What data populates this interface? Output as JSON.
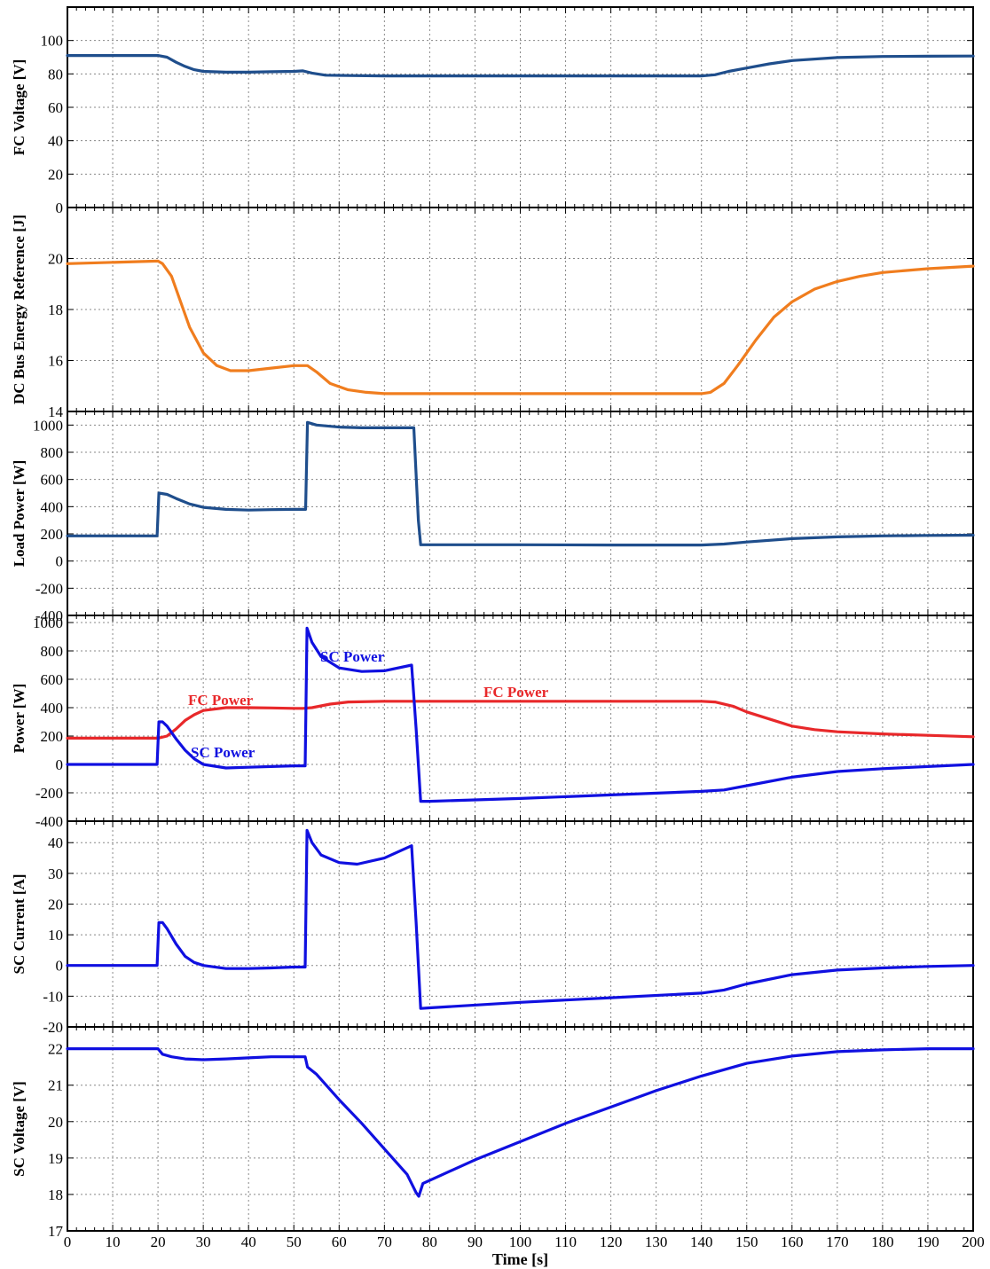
{
  "chart_data": [
    {
      "type": "line",
      "ylabel": "FC Voltage [V]",
      "xlim": [
        0,
        200
      ],
      "ylim": [
        0,
        120
      ],
      "yticks": [
        0,
        20,
        40,
        60,
        80,
        100
      ],
      "grid": true,
      "series": [
        {
          "color": "#1f4e8c",
          "x": [
            0,
            20,
            22,
            24,
            26,
            28,
            30,
            35,
            40,
            45,
            50,
            52,
            54,
            57,
            62,
            70,
            80,
            100,
            120,
            140,
            143,
            146,
            150,
            155,
            160,
            170,
            180,
            190,
            200
          ],
          "y": [
            91,
            91,
            90,
            87,
            84.5,
            82.5,
            81.5,
            81,
            81,
            81.3,
            81.5,
            81.8,
            80.5,
            79.2,
            79,
            78.8,
            78.8,
            78.8,
            78.8,
            78.8,
            79.5,
            81.5,
            83.5,
            86,
            88,
            89.8,
            90.4,
            90.6,
            90.7
          ]
        }
      ]
    },
    {
      "type": "line",
      "ylabel": "DC Bus Energy Reference [J]",
      "xlim": [
        0,
        200
      ],
      "ylim": [
        14,
        22
      ],
      "yticks": [
        14,
        16,
        18,
        20
      ],
      "grid": true,
      "series": [
        {
          "color": "#f07d1e",
          "x": [
            0,
            20,
            21,
            23,
            25,
            27,
            30,
            33,
            36,
            40,
            45,
            50,
            53,
            55,
            58,
            62,
            66,
            70,
            80,
            100,
            120,
            140,
            142,
            145,
            148,
            152,
            156,
            160,
            165,
            170,
            175,
            180,
            190,
            200
          ],
          "y": [
            19.8,
            19.9,
            19.8,
            19.3,
            18.3,
            17.3,
            16.3,
            15.8,
            15.6,
            15.6,
            15.7,
            15.8,
            15.8,
            15.55,
            15.1,
            14.85,
            14.75,
            14.7,
            14.7,
            14.7,
            14.7,
            14.7,
            14.75,
            15.1,
            15.8,
            16.8,
            17.7,
            18.3,
            18.8,
            19.1,
            19.3,
            19.45,
            19.6,
            19.7
          ]
        }
      ]
    },
    {
      "type": "line",
      "ylabel": "Load Power [W]",
      "xlim": [
        0,
        200
      ],
      "ylim": [
        -400,
        1100
      ],
      "yticks": [
        -400,
        -200,
        0,
        200,
        400,
        600,
        800,
        1000
      ],
      "grid": true,
      "series": [
        {
          "color": "#1f4e8c",
          "x": [
            0,
            19.8,
            20.2,
            22,
            24,
            27,
            30,
            35,
            40,
            45,
            50,
            52.6,
            53,
            55,
            60,
            65,
            70,
            76.5,
            77.5,
            78,
            80,
            100,
            120,
            140,
            145,
            150,
            160,
            170,
            180,
            190,
            200
          ],
          "y": [
            185,
            185,
            500,
            490,
            460,
            420,
            395,
            380,
            375,
            378,
            380,
            380,
            1020,
            1000,
            985,
            980,
            980,
            980,
            300,
            120,
            120,
            120,
            118,
            118,
            125,
            140,
            165,
            178,
            185,
            188,
            190
          ]
        }
      ]
    },
    {
      "type": "line",
      "ylabel": "Power [W]",
      "xlim": [
        0,
        200
      ],
      "ylim": [
        -400,
        1050
      ],
      "yticks": [
        -400,
        -200,
        0,
        200,
        400,
        600,
        800,
        1000
      ],
      "grid": true,
      "annotations": [
        "FC Power",
        "FC Power",
        "SC Power",
        "SC Power"
      ],
      "series": [
        {
          "name": "FC Power",
          "color": "#e8282a",
          "x": [
            0,
            20,
            22,
            24,
            26,
            28,
            30,
            35,
            40,
            45,
            50,
            52,
            54,
            58,
            62,
            70,
            80,
            100,
            120,
            140,
            143,
            147,
            150,
            155,
            160,
            165,
            170,
            180,
            190,
            200
          ],
          "y": [
            185,
            185,
            200,
            250,
            310,
            350,
            380,
            400,
            400,
            398,
            395,
            395,
            400,
            425,
            440,
            445,
            445,
            445,
            445,
            445,
            440,
            410,
            370,
            320,
            270,
            245,
            230,
            215,
            205,
            195
          ]
        },
        {
          "name": "SC Power",
          "color": "#1010e0",
          "x": [
            0,
            19.8,
            20.2,
            21,
            22,
            24,
            26,
            28,
            30,
            35,
            40,
            45,
            50,
            52.5,
            52.9,
            54,
            56,
            60,
            65,
            70,
            76,
            77,
            78,
            80,
            100,
            120,
            140,
            145,
            150,
            160,
            170,
            180,
            190,
            200
          ],
          "y": [
            0,
            0,
            300,
            300,
            270,
            180,
            100,
            40,
            0,
            -25,
            -20,
            -15,
            -10,
            -10,
            960,
            860,
            760,
            680,
            655,
            660,
            700,
            250,
            -260,
            -260,
            -240,
            -215,
            -190,
            -180,
            -150,
            -90,
            -50,
            -30,
            -15,
            0
          ]
        }
      ]
    },
    {
      "type": "line",
      "ylabel": "SC Current [A]",
      "xlim": [
        0,
        200
      ],
      "ylim": [
        -20,
        47
      ],
      "yticks": [
        -20,
        -10,
        0,
        10,
        20,
        30,
        40
      ],
      "grid": true,
      "series": [
        {
          "color": "#1010e0",
          "x": [
            0,
            19.8,
            20.2,
            21,
            22,
            24,
            26,
            28,
            30,
            35,
            40,
            45,
            50,
            52.5,
            52.9,
            54,
            56,
            60,
            64,
            70,
            76,
            77,
            78,
            80,
            100,
            120,
            140,
            145,
            150,
            160,
            170,
            180,
            190,
            200
          ],
          "y": [
            0,
            0,
            14,
            14,
            12,
            7,
            3,
            1,
            0,
            -1,
            -1,
            -0.8,
            -0.5,
            -0.5,
            44,
            40,
            36,
            33.5,
            33,
            35,
            39,
            14,
            -14,
            -13.8,
            -12,
            -10.5,
            -9,
            -8,
            -6,
            -3,
            -1.5,
            -0.8,
            -0.3,
            0
          ]
        }
      ]
    },
    {
      "type": "line",
      "ylabel": "SC Voltage [V]",
      "xlabel": "Time [s]",
      "xlim": [
        0,
        200
      ],
      "ylim": [
        17,
        22.6
      ],
      "yticks": [
        17,
        18,
        19,
        20,
        21,
        22
      ],
      "xticks": [
        0,
        10,
        20,
        30,
        40,
        50,
        60,
        70,
        80,
        90,
        100,
        110,
        120,
        130,
        140,
        150,
        160,
        170,
        180,
        190,
        200
      ],
      "grid": true,
      "series": [
        {
          "color": "#1010e0",
          "x": [
            0,
            20,
            21,
            23,
            26,
            30,
            35,
            40,
            45,
            50,
            52.5,
            53,
            55,
            60,
            65,
            70,
            75,
            77,
            77.6,
            78.5,
            82,
            90,
            100,
            110,
            120,
            130,
            140,
            150,
            160,
            170,
            180,
            190,
            200
          ],
          "y": [
            22,
            22,
            21.85,
            21.78,
            21.72,
            21.7,
            21.72,
            21.75,
            21.78,
            21.78,
            21.78,
            21.5,
            21.3,
            20.6,
            19.95,
            19.25,
            18.55,
            18.05,
            17.95,
            18.3,
            18.5,
            18.95,
            19.45,
            19.95,
            20.4,
            20.85,
            21.25,
            21.6,
            21.8,
            21.92,
            21.97,
            22,
            22
          ]
        }
      ]
    }
  ],
  "annotations": {
    "fc_power_1": "FC Power",
    "fc_power_2": "FC Power",
    "sc_power_1": "SC Power",
    "sc_power_2": "SC Power"
  },
  "xlabel": "Time [s]"
}
